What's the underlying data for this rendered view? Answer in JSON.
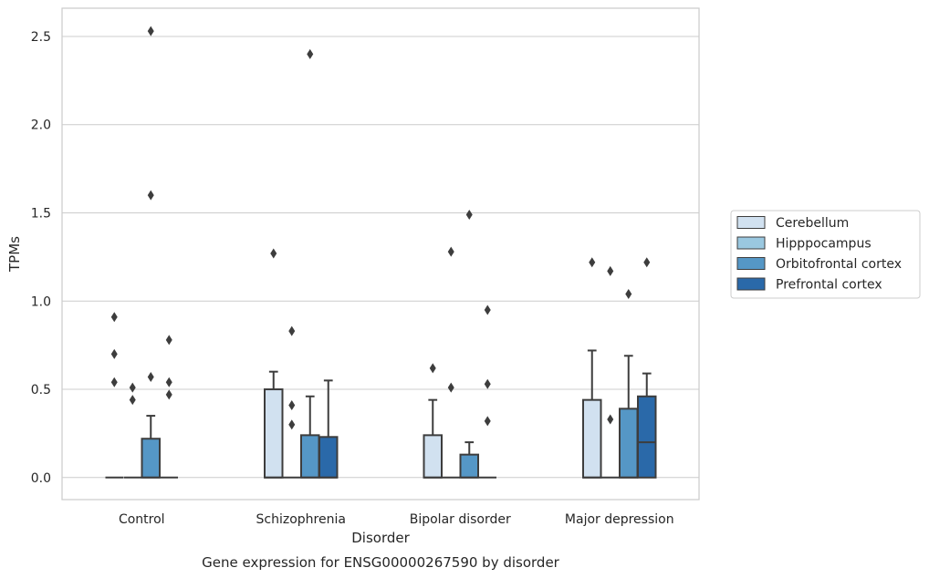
{
  "chart_data": {
    "type": "box",
    "caption": "Gene expression for ENSG00000267590 by disorder",
    "xlabel": "Disorder",
    "ylabel": "TPMs",
    "ylim": [
      -0.125,
      2.66
    ],
    "yticks": [
      "0.0",
      "0.5",
      "1.0",
      "1.5",
      "2.0",
      "2.5"
    ],
    "grid": "horizontal",
    "legend_position": "right",
    "categories": [
      "Control",
      "Schizophrenia",
      "Bipolar disorder",
      "Major depression"
    ],
    "series": [
      {
        "name": "Cerebellum",
        "color": "#d1e1f0",
        "boxes": [
          {
            "q1": 0,
            "median": 0,
            "q3": 0,
            "whisker_low": 0,
            "whisker_high": 0,
            "outliers": [
              0.54,
              0.7,
              0.91
            ]
          },
          {
            "q1": 0,
            "median": 0,
            "q3": 0.5,
            "whisker_low": 0,
            "whisker_high": 0.6,
            "outliers": [
              1.27
            ]
          },
          {
            "q1": 0,
            "median": 0,
            "q3": 0.24,
            "whisker_low": 0,
            "whisker_high": 0.44,
            "outliers": [
              0.62
            ]
          },
          {
            "q1": 0,
            "median": 0,
            "q3": 0.44,
            "whisker_low": 0,
            "whisker_high": 0.72,
            "outliers": [
              1.22
            ]
          }
        ]
      },
      {
        "name": "Hipppocampus",
        "color": "#9ac8e0",
        "boxes": [
          {
            "q1": 0,
            "median": 0,
            "q3": 0,
            "whisker_low": 0,
            "whisker_high": 0,
            "outliers": [
              0.44,
              0.51
            ]
          },
          {
            "q1": 0,
            "median": 0,
            "q3": 0,
            "whisker_low": 0,
            "whisker_high": 0,
            "outliers": [
              0.3,
              0.41,
              0.83
            ]
          },
          {
            "q1": 0,
            "median": 0,
            "q3": 0,
            "whisker_low": 0,
            "whisker_high": 0,
            "outliers": [
              0.51,
              1.28
            ]
          },
          {
            "q1": 0,
            "median": 0,
            "q3": 0,
            "whisker_low": 0,
            "whisker_high": 0,
            "outliers": [
              0.33,
              1.17
            ]
          }
        ]
      },
      {
        "name": "Orbitofrontal cortex",
        "color": "#5597c6",
        "boxes": [
          {
            "q1": 0,
            "median": 0,
            "q3": 0.22,
            "whisker_low": 0,
            "whisker_high": 0.35,
            "outliers": [
              0.57,
              1.6,
              2.53
            ]
          },
          {
            "q1": 0,
            "median": 0,
            "q3": 0.24,
            "whisker_low": 0,
            "whisker_high": 0.46,
            "outliers": [
              2.4
            ]
          },
          {
            "q1": 0,
            "median": 0,
            "q3": 0.13,
            "whisker_low": 0,
            "whisker_high": 0.2,
            "outliers": [
              1.49
            ]
          },
          {
            "q1": 0,
            "median": 0,
            "q3": 0.39,
            "whisker_low": 0,
            "whisker_high": 0.69,
            "outliers": [
              1.04
            ]
          }
        ]
      },
      {
        "name": "Prefrontal cortex",
        "color": "#2a69a9",
        "boxes": [
          {
            "q1": 0,
            "median": 0,
            "q3": 0,
            "whisker_low": 0,
            "whisker_high": 0,
            "outliers": [
              0.47,
              0.54,
              0.78
            ]
          },
          {
            "q1": 0,
            "median": 0,
            "q3": 0.23,
            "whisker_low": 0,
            "whisker_high": 0.55,
            "outliers": []
          },
          {
            "q1": 0,
            "median": 0,
            "q3": 0,
            "whisker_low": 0,
            "whisker_high": 0,
            "outliers": [
              0.32,
              0.53,
              0.95
            ]
          },
          {
            "q1": 0,
            "median": 0.2,
            "q3": 0.46,
            "whisker_low": 0,
            "whisker_high": 0.59,
            "outliers": [
              1.22
            ]
          }
        ]
      }
    ]
  }
}
